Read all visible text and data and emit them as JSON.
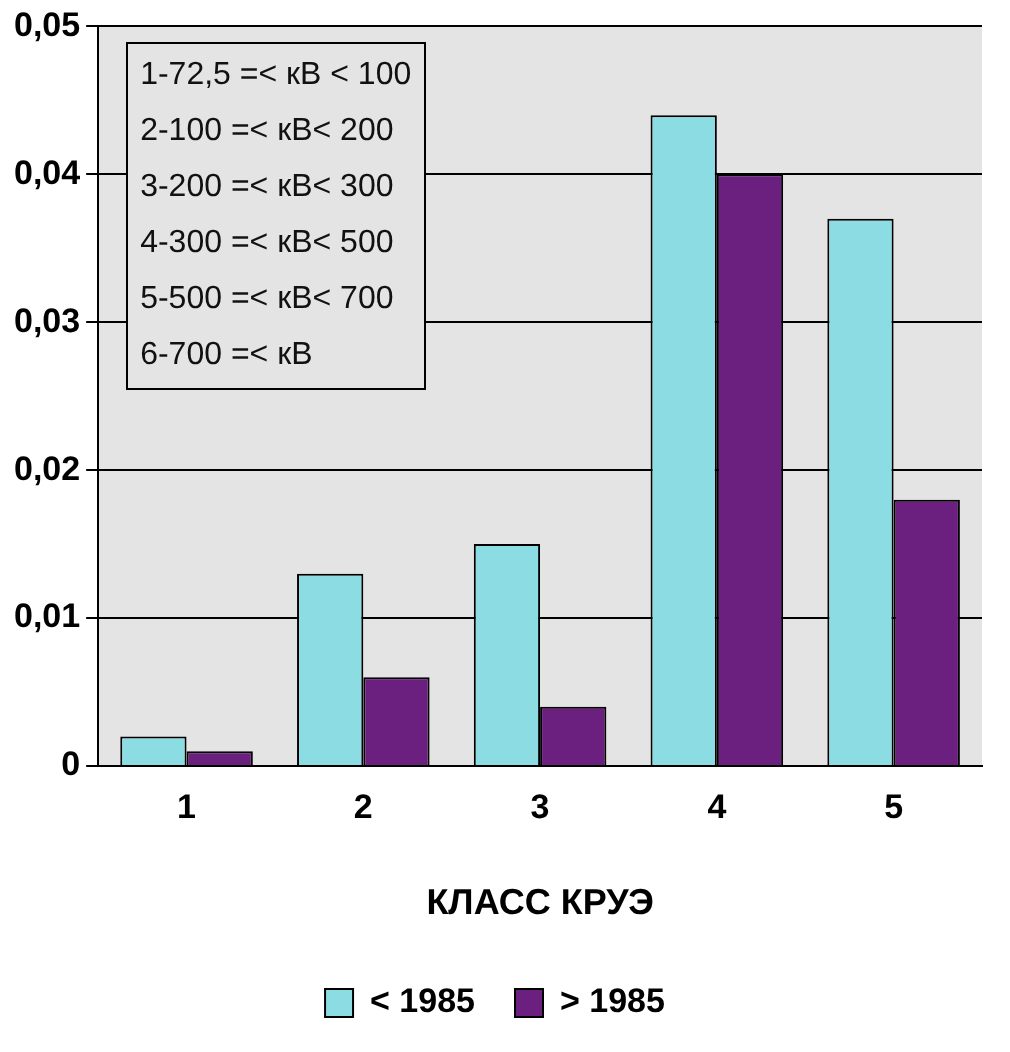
{
  "chart_data": {
    "type": "bar",
    "categories": [
      "1",
      "2",
      "3",
      "4",
      "5"
    ],
    "series": [
      {
        "name": "< 1985",
        "color": "#8cdce4",
        "values": [
          0.002,
          0.013,
          0.015,
          0.044,
          0.037
        ]
      },
      {
        "name": "> 1985",
        "color": "#6b1f7f",
        "values": [
          0.001,
          0.006,
          0.004,
          0.04,
          0.018
        ]
      }
    ],
    "xlabel": "КЛАСС КРУЭ",
    "ylim": [
      0,
      0.05
    ],
    "yticks": [
      {
        "value": 0,
        "label": "0"
      },
      {
        "value": 0.01,
        "label": "0,01"
      },
      {
        "value": 0.02,
        "label": "0,02"
      },
      {
        "value": 0.03,
        "label": "0,03"
      },
      {
        "value": 0.04,
        "label": "0,04"
      },
      {
        "value": 0.05,
        "label": "0,05"
      }
    ],
    "grid": "y",
    "legend": "bottom",
    "annotations": [
      "1-72,5 =< кВ < 100",
      "2-100 =< кВ< 200",
      "3-200 =< кВ< 300",
      "4-300 =< кВ< 500",
      "5-500 =< кВ< 700",
      "6-700 =< кВ"
    ]
  }
}
